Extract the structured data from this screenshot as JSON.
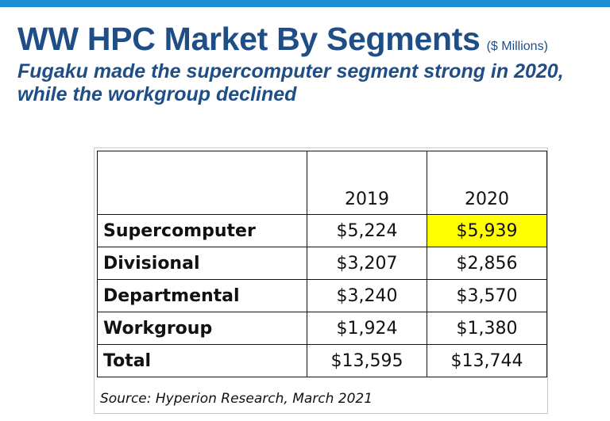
{
  "title": "WW HPC Market By Segments",
  "units": "($ Millions)",
  "subtitle": "Fugaku made the supercomputer segment strong in 2020, while the workgroup declined",
  "source": "Source: Hyperion Research, March 2021",
  "colors": {
    "title": "#1f4e86",
    "topbar": "#1b8fd2",
    "highlight": "#ffff00"
  },
  "chart_data": {
    "type": "table",
    "columns": [
      "",
      "2019",
      "2020"
    ],
    "rows": [
      {
        "segment": "Supercomputer",
        "values": [
          "$5,224",
          "$5,939"
        ]
      },
      {
        "segment": "Divisional",
        "values": [
          "$3,207",
          "$2,856"
        ]
      },
      {
        "segment": "Departmental",
        "values": [
          "$3,240",
          "$3,570"
        ]
      },
      {
        "segment": "Workgroup",
        "values": [
          "$1,924",
          "$1,380"
        ]
      },
      {
        "segment": "Total",
        "values": [
          "$13,595",
          "$13,744"
        ]
      }
    ],
    "highlighted_cell": {
      "row": "Supercomputer",
      "column": "2020"
    }
  }
}
